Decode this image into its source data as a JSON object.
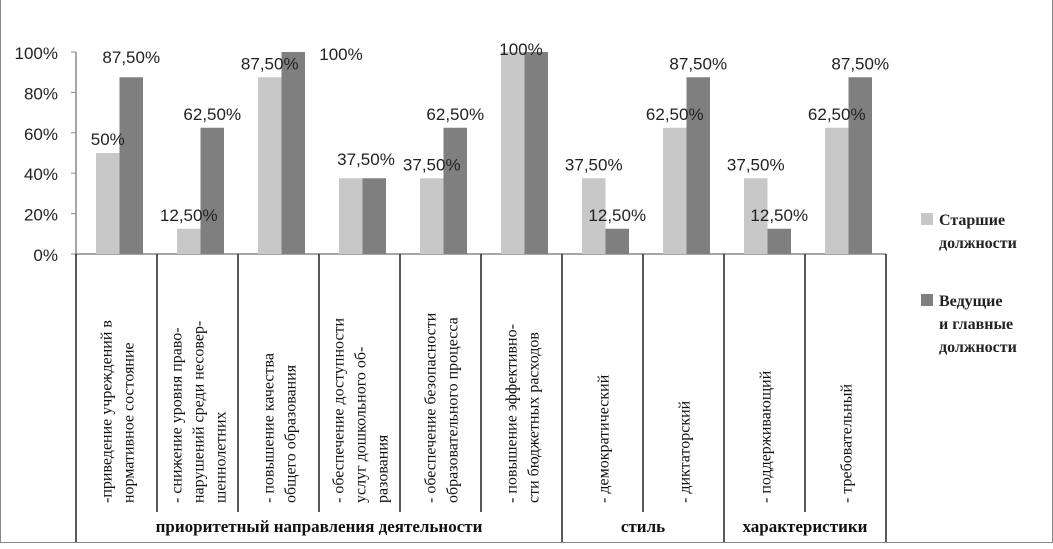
{
  "chart_data": {
    "type": "bar",
    "ylim": [
      0,
      100
    ],
    "yticks": [
      "0%",
      "20%",
      "40%",
      "60%",
      "80%",
      "100%"
    ],
    "categories": [
      [
        "-приведение учреждений в",
        "нормативное состояние"
      ],
      [
        "- снижение уровня право-",
        "нарушений среди несовер-",
        "шеннолетних"
      ],
      [
        "- повышение качества",
        "общего образования"
      ],
      [
        "- обеспечение доступности",
        "услуг дошкольного об-",
        "разования"
      ],
      [
        "- обеспечение безопасности",
        "образовательного процесса"
      ],
      [
        "- повышение эффективно-",
        "сти бюджетных расходов"
      ],
      [
        "- демократический"
      ],
      [
        "- диктаторский"
      ],
      [
        "- поддерживающий"
      ],
      [
        "- требовательный"
      ]
    ],
    "groups": [
      {
        "label": "приоритетный направления деятельности",
        "span": 6
      },
      {
        "label": "стиль",
        "span": 2
      },
      {
        "label": "характеристики",
        "span": 2
      }
    ],
    "series": [
      {
        "name": "Старшие должности",
        "legend_lines": [
          "Старшие",
          "должности"
        ],
        "color": "#c8c8c8",
        "values": [
          50,
          12.5,
          87.5,
          37.5,
          37.5,
          100,
          37.5,
          62.5,
          37.5,
          62.5
        ],
        "labels": [
          "50%",
          "12,50%",
          "87,50%",
          "37,50%",
          "37,50%",
          "100%",
          "37,50%",
          "62,50%",
          "37,50%",
          "62,50%"
        ]
      },
      {
        "name": "Ведущие и главные должности",
        "legend_lines": [
          "Ведущие",
          "и главные",
          "должности"
        ],
        "color": "#7f7f7f",
        "values": [
          87.5,
          62.5,
          100,
          37.5,
          62.5,
          100,
          12.5,
          87.5,
          12.5,
          87.5
        ],
        "labels": [
          "87,50%",
          "62,50%",
          "100%",
          null,
          "62,50%",
          null,
          "12,50%",
          "87,50%",
          "12,50%",
          "87,50%"
        ]
      }
    ]
  }
}
